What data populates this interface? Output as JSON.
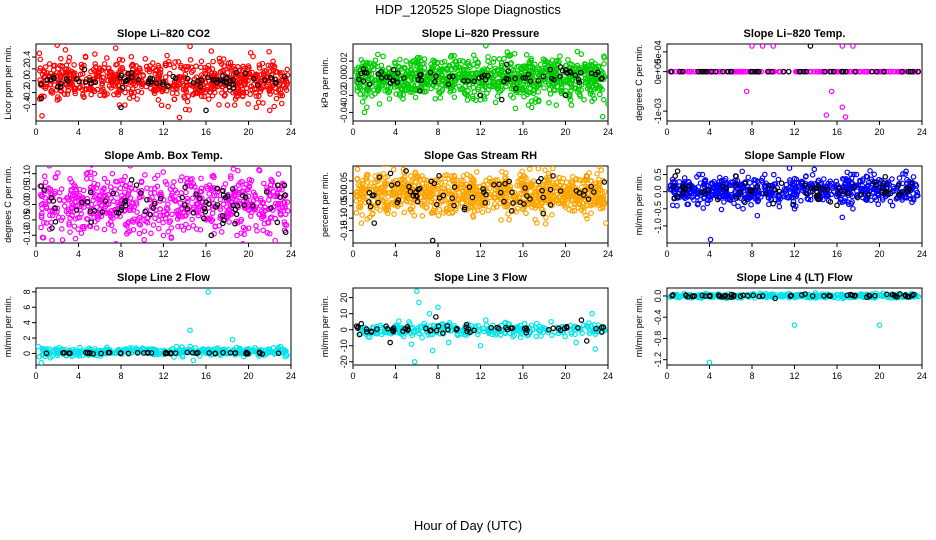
{
  "figure": {
    "title": "HDP_120525  Slope Diagnostics",
    "xlabel": "Hour of Day (UTC)"
  },
  "chart_data": [
    {
      "type": "scatter",
      "title": "Slope Li–820 CO2",
      "ylabel": "Licor ppm per min.",
      "color": "#ff0000",
      "xlim": [
        0,
        24
      ],
      "xticks": [
        0,
        4,
        8,
        12,
        16,
        20,
        24
      ],
      "ylim": [
        -0.68,
        0.62
      ],
      "yticks": [
        -0.4,
        -0.2,
        0.0,
        0.2,
        0.4
      ],
      "ytick_labels": [
        "-0.4",
        "-0.2",
        "0.0",
        "0.2",
        "0.4"
      ],
      "series": [
        {
          "name": "all",
          "style": "dense_band",
          "center": 0.0,
          "spread": 0.17,
          "count": 700
        },
        {
          "name": "mean",
          "color": "#000000",
          "center": 0.0,
          "spread": 0.06,
          "count": 70,
          "points": [
            [
              0.5,
              -0.3
            ],
            [
              8,
              -0.45
            ],
            [
              16,
              -0.5
            ]
          ]
        }
      ],
      "outliers": [
        [
          2.0,
          0.6
        ],
        [
          7.5,
          0.55
        ],
        [
          13.5,
          -0.62
        ],
        [
          14.5,
          0.58
        ],
        [
          16.5,
          0.5
        ],
        [
          22,
          -0.5
        ]
      ]
    },
    {
      "type": "scatter",
      "title": "Slope Li–820 Pressure",
      "ylabel": "kPa per min.",
      "color": "#00cc00",
      "xlim": [
        0,
        24
      ],
      "xticks": [
        0,
        4,
        8,
        12,
        16,
        20,
        24
      ],
      "ylim": [
        -0.05,
        0.04
      ],
      "yticks": [
        -0.04,
        -0.02,
        0.0,
        0.02
      ],
      "ytick_labels": [
        "-0.04",
        "-0.02",
        "0.00",
        "0.02"
      ],
      "series": [
        {
          "name": "all",
          "style": "dense_band",
          "center": 0.0,
          "spread": 0.012,
          "count": 900
        },
        {
          "name": "mean",
          "color": "#000000",
          "center": 0.0,
          "spread": 0.006,
          "count": 70,
          "points": [
            [
              12,
              -0.02
            ],
            [
              14,
              -0.025
            ],
            [
              20,
              -0.02
            ]
          ]
        }
      ],
      "outliers": [
        [
          12.5,
          0.038
        ],
        [
          2.5,
          -0.03
        ],
        [
          24,
          -0.03
        ],
        [
          23.5,
          -0.045
        ],
        [
          5,
          0.02
        ]
      ]
    },
    {
      "type": "scatter",
      "title": "Slope Li–820 Temp.",
      "ylabel": "degrees C per min.",
      "color": "#ff00ff",
      "xlim": [
        0,
        24
      ],
      "xticks": [
        0,
        4,
        8,
        12,
        16,
        20,
        24
      ],
      "ylim": [
        -0.00125,
        0.0007
      ],
      "yticks": [
        -0.001,
        0.0,
        0.0005
      ],
      "ytick_labels": [
        "-1e-03",
        "0e+00",
        "5e-04"
      ],
      "series": [
        {
          "name": "all",
          "style": "flat_line",
          "center": 0.0,
          "spread": 0.0,
          "count": 200
        },
        {
          "name": "mean",
          "color": "#000000",
          "center": 0.0,
          "spread": 0.0,
          "count": 48,
          "points": [
            [
              13.5,
              0.00065
            ]
          ]
        }
      ],
      "outliers": [
        [
          8,
          0.00065
        ],
        [
          9,
          0.00065
        ],
        [
          10,
          0.00065
        ],
        [
          16.5,
          0.00065
        ],
        [
          17.5,
          0.00065
        ],
        [
          7.5,
          -0.0005
        ],
        [
          15.5,
          -0.0005
        ],
        [
          16.5,
          -0.0009
        ],
        [
          15,
          -0.0011
        ],
        [
          16.8,
          -0.00115
        ]
      ]
    },
    {
      "type": "scatter",
      "title": "Slope Amb. Box Temp.",
      "ylabel": "degrees C per min.",
      "color": "#ff00ff",
      "xlim": [
        0,
        24
      ],
      "xticks": [
        0,
        4,
        8,
        12,
        16,
        20,
        24
      ],
      "ylim": [
        -0.125,
        0.125
      ],
      "yticks": [
        -0.1,
        -0.05,
        0.0,
        0.05,
        0.1
      ],
      "ytick_labels": [
        "-0.10",
        "-0.05",
        "0.00",
        "0.05",
        "0.10"
      ],
      "series": [
        {
          "name": "all",
          "style": "dense_band",
          "center": 0.0,
          "spread": 0.05,
          "count": 650
        },
        {
          "name": "mean",
          "color": "#000000",
          "center": 0.0,
          "spread": 0.04,
          "count": 70,
          "points": [
            [
              16.5,
              -0.1
            ],
            [
              0.5,
              0.06
            ],
            [
              9,
              0.08
            ],
            [
              23.5,
              -0.09
            ]
          ]
        }
      ],
      "outliers": [
        [
          2.5,
          -0.115
        ],
        [
          22,
          -0.095
        ],
        [
          19,
          0.11
        ],
        [
          5.5,
          0.1
        ]
      ]
    },
    {
      "type": "scatter",
      "title": "Slope Gas Stream RH",
      "ylabel": "percent per min.",
      "color": "#ffa500",
      "xlim": [
        0,
        24
      ],
      "xticks": [
        0,
        4,
        8,
        12,
        16,
        20,
        24
      ],
      "ylim": [
        -0.2,
        0.11
      ],
      "yticks": [
        -0.15,
        -0.1,
        -0.05,
        0.0,
        0.05
      ],
      "ytick_labels": [
        "-0.15",
        "-0.10",
        "-0.05",
        "0.00",
        "0.05"
      ],
      "series": [
        {
          "name": "all",
          "style": "dense_band",
          "center": 0.0,
          "spread": 0.04,
          "count": 900
        },
        {
          "name": "mean",
          "color": "#000000",
          "center": 0.0,
          "spread": 0.04,
          "count": 70,
          "points": [
            [
              5,
              0.09
            ],
            [
              7.5,
              -0.19
            ],
            [
              2,
              -0.12
            ]
          ]
        }
      ],
      "outliers": [
        [
          0.8,
          -0.12
        ],
        [
          23.8,
          -0.12
        ],
        [
          6.5,
          0.07
        ],
        [
          22,
          0.07
        ]
      ]
    },
    {
      "type": "scatter",
      "title": "Slope Sample Flow",
      "ylabel": "ml/min per min.",
      "color": "#0000ff",
      "xlim": [
        0,
        24
      ],
      "xticks": [
        0,
        4,
        8,
        12,
        16,
        20,
        24
      ],
      "ylim": [
        -1.5,
        0.75
      ],
      "yticks": [
        -1.0,
        -0.5,
        0.0,
        0.5
      ],
      "ytick_labels": [
        "-1.0",
        "-0.5",
        "0.0",
        "0.5"
      ],
      "series": [
        {
          "name": "all",
          "style": "dense_band",
          "center": 0.05,
          "spread": 0.2,
          "count": 650
        },
        {
          "name": "mean",
          "color": "#000000",
          "center": 0.05,
          "spread": 0.15,
          "count": 70,
          "points": [
            [
              1,
              0.6
            ],
            [
              10,
              -0.35
            ],
            [
              16,
              -0.4
            ],
            [
              6.5,
              0.45
            ]
          ]
        }
      ],
      "outliers": [
        [
          4.1,
          -1.4
        ],
        [
          8.5,
          -0.7
        ],
        [
          12,
          -0.5
        ],
        [
          16.5,
          -0.75
        ],
        [
          3,
          0.5
        ],
        [
          17.5,
          -0.5
        ]
      ]
    },
    {
      "type": "scatter",
      "title": "Slope Line 2 Flow",
      "ylabel": "ml/min per min.",
      "color": "#00e5ee",
      "xlim": [
        0,
        24
      ],
      "xticks": [
        0,
        4,
        8,
        12,
        16,
        20,
        24
      ],
      "ylim": [
        -1.5,
        8.5
      ],
      "yticks": [
        0,
        2,
        4,
        6,
        8
      ],
      "ytick_labels": [
        "0",
        "2",
        "4",
        "6",
        "8"
      ],
      "series": [
        {
          "name": "all",
          "style": "dense_band",
          "center": 0.2,
          "spread": 0.25,
          "count": 400
        },
        {
          "name": "mean",
          "color": "#000000",
          "center": 0.05,
          "spread": 0.05,
          "count": 48,
          "points": []
        }
      ],
      "outliers": [
        [
          16.2,
          8.0
        ],
        [
          14.5,
          3.0
        ],
        [
          18.5,
          1.8
        ],
        [
          0.5,
          -1.2
        ],
        [
          0.2,
          0.9
        ],
        [
          14.8,
          -0.9
        ],
        [
          23,
          0.9
        ]
      ]
    },
    {
      "type": "scatter",
      "title": "Slope Line 3 Flow",
      "ylabel": "ml/min per min.",
      "color": "#00e5ee",
      "xlim": [
        0,
        24
      ],
      "xticks": [
        0,
        4,
        8,
        12,
        16,
        20,
        24
      ],
      "ylim": [
        -22,
        26
      ],
      "yticks": [
        -20,
        -10,
        0,
        10,
        20
      ],
      "ytick_labels": [
        "-20",
        "-10",
        "0",
        "10",
        "20"
      ],
      "series": [
        {
          "name": "all",
          "style": "dense_band",
          "center": 0.0,
          "spread": 2.0,
          "count": 300
        },
        {
          "name": "mean",
          "color": "#000000",
          "center": 0.5,
          "spread": 1.5,
          "count": 60,
          "points": [
            [
              3.5,
              -8
            ],
            [
              7.8,
              8
            ],
            [
              21.5,
              6
            ],
            [
              22,
              -7
            ]
          ]
        }
      ],
      "outliers": [
        [
          6,
          24
        ],
        [
          6.2,
          17
        ],
        [
          5.8,
          -20
        ],
        [
          6.5,
          -5
        ],
        [
          7.5,
          -13
        ],
        [
          8,
          14
        ],
        [
          7.2,
          10
        ],
        [
          12,
          -10
        ],
        [
          12.5,
          6
        ],
        [
          9,
          -8
        ],
        [
          22.5,
          10
        ],
        [
          22.8,
          -12
        ],
        [
          21,
          -8
        ],
        [
          5.5,
          -9
        ]
      ]
    },
    {
      "type": "scatter",
      "title": "Slope Line 4 (LT) Flow",
      "ylabel": "ml/min per min.",
      "color": "#00e5ee",
      "xlim": [
        0,
        24
      ],
      "xticks": [
        0,
        4,
        8,
        12,
        16,
        20,
        24
      ],
      "ylim": [
        -1.3,
        0.15
      ],
      "yticks": [
        -1.2,
        -0.8,
        -0.4,
        0.0
      ],
      "ytick_labels": [
        "-1.2",
        "-0.8",
        "-0.4",
        "0.0"
      ],
      "series": [
        {
          "name": "all",
          "style": "dense_band",
          "center": 0.0,
          "spread": 0.02,
          "count": 380
        },
        {
          "name": "mean",
          "color": "#000000",
          "center": 0.0,
          "spread": 0.015,
          "count": 60,
          "points": []
        }
      ],
      "outliers": [
        [
          4,
          -1.25
        ],
        [
          12,
          -0.55
        ],
        [
          20,
          -0.55
        ]
      ]
    }
  ]
}
